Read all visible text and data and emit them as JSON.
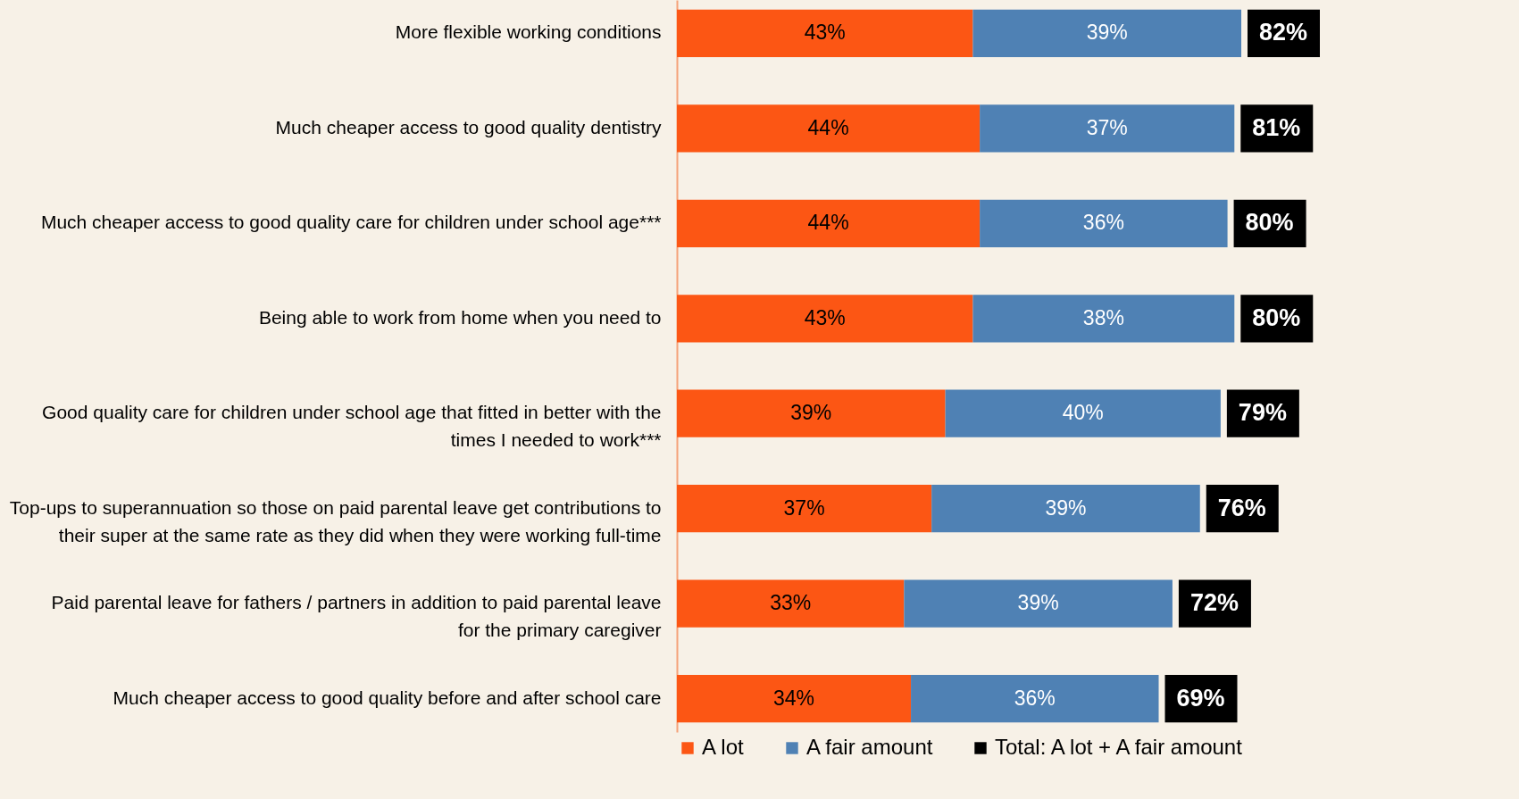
{
  "chart_data": {
    "type": "bar",
    "orientation": "horizontal",
    "stacked": true,
    "legend": "bottom",
    "categories": [
      "More flexible working conditions",
      "Much cheaper access to good quality dentistry",
      "Much cheaper access to good quality care for children under school age***",
      "Being able to work from home when you need to",
      "Good quality care for children under school age that fitted in better with the times I needed to work***",
      "Top-ups to superannuation so those on paid parental leave get contributions to their super at the same rate as they did when they were working full-time",
      "Paid parental leave for fathers / partners in addition to paid parental leave for the primary caregiver",
      "Much cheaper access to good quality before and after school care"
    ],
    "series": [
      {
        "name": "A lot",
        "color": "#fc5614",
        "values": [
          43,
          44,
          44,
          43,
          39,
          37,
          33,
          34
        ],
        "value_labels": [
          "43%",
          "44%",
          "44%",
          "43%",
          "39%",
          "37%",
          "33%",
          "34%"
        ]
      },
      {
        "name": "A fair amount",
        "color": "#4f81b4",
        "values": [
          39,
          37,
          36,
          38,
          40,
          39,
          39,
          36
        ],
        "value_labels": [
          "39%",
          "37%",
          "36%",
          "38%",
          "40%",
          "39%",
          "39%",
          "36%"
        ]
      }
    ],
    "totals": [
      "82%",
      "81%",
      "80%",
      "80%",
      "79%",
      "76%",
      "72%",
      "69%"
    ],
    "annotations": [
      "Total: A lot + A fair amount"
    ]
  }
}
